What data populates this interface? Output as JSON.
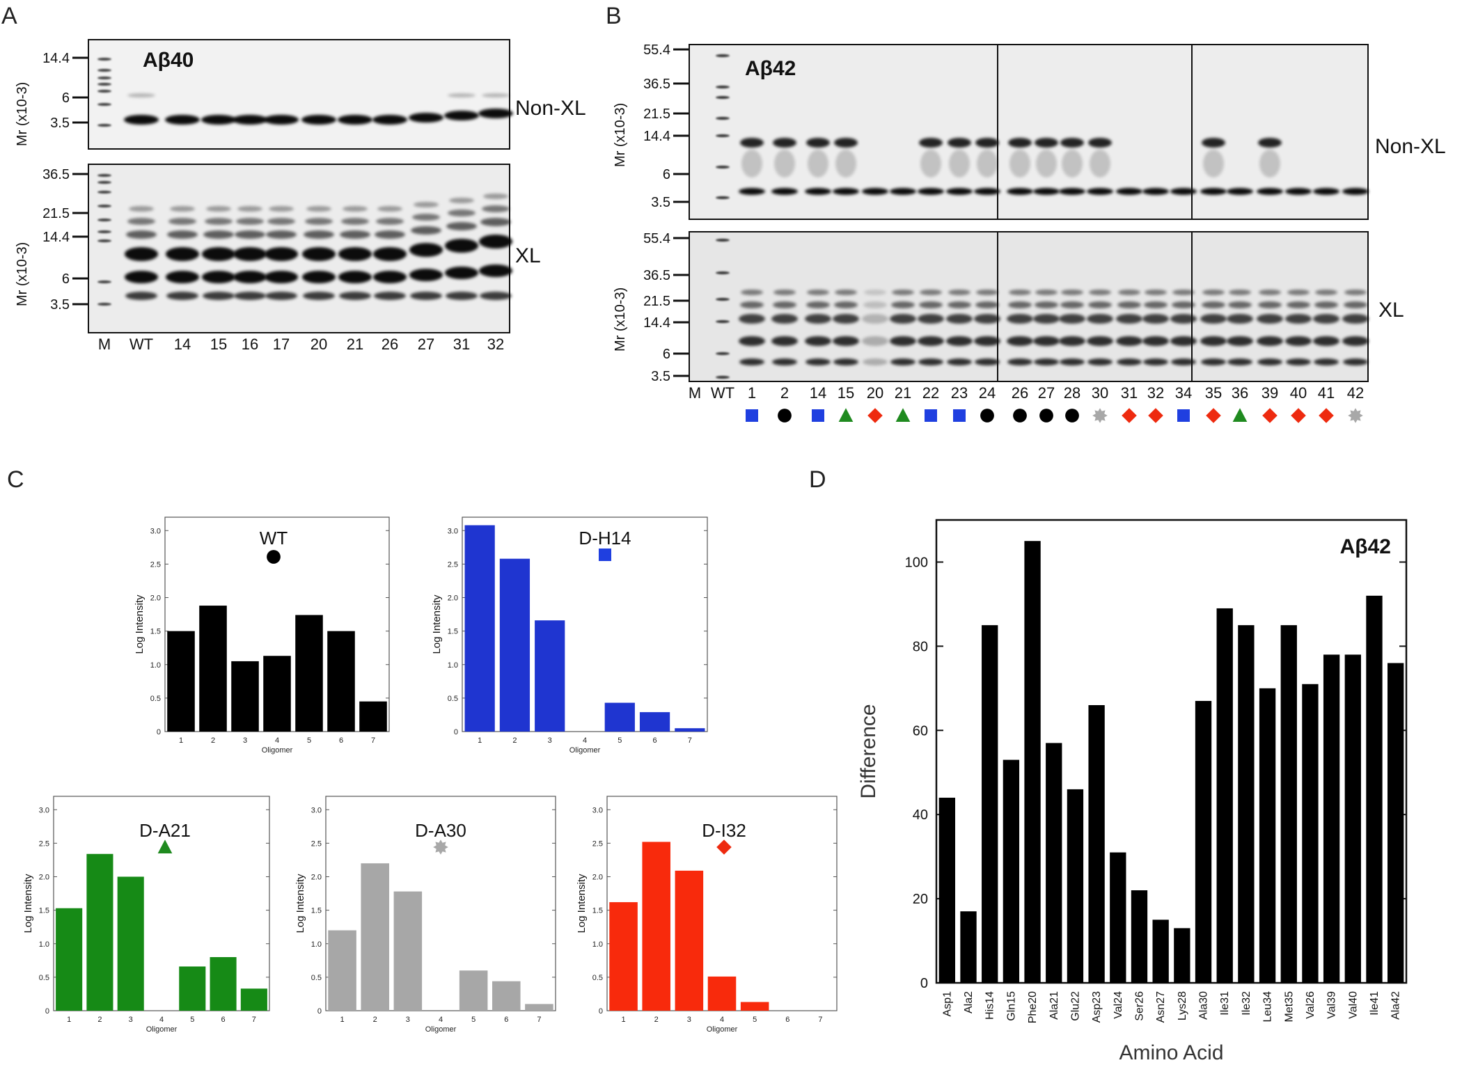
{
  "panel_letters": {
    "a": "A",
    "b": "B",
    "c": "C",
    "d": "D"
  },
  "panel_a": {
    "title": "Aβ40",
    "top_label": "Non-XL",
    "bottom_label": "XL",
    "mr_label": "Mr (x10-3)",
    "top_markers": [
      "14.4",
      "6",
      "3.5"
    ],
    "bottom_markers": [
      "36.5",
      "21.5",
      "14.4",
      "6",
      "3.5"
    ],
    "lanes": [
      "M",
      "WT",
      "14",
      "15",
      "16",
      "17",
      "20",
      "21",
      "26",
      "27",
      "31",
      "32"
    ]
  },
  "panel_b": {
    "title": "Aβ42",
    "top_label": "Non-XL",
    "bottom_label": "XL",
    "mr_label": "Mr (x10-3)",
    "markers": [
      "55.4",
      "36.5",
      "21.5",
      "14.4",
      "6",
      "3.5"
    ],
    "lanes": [
      "M",
      "WT",
      "1",
      "2",
      "14",
      "15",
      "20",
      "21",
      "22",
      "23",
      "24",
      "26",
      "27",
      "28",
      "30",
      "31",
      "32",
      "34",
      "35",
      "36",
      "39",
      "40",
      "41",
      "42"
    ],
    "lane_symbols": [
      "",
      "",
      "square",
      "circle",
      "square",
      "triangle",
      "diamond",
      "triangle",
      "square",
      "square",
      "circle",
      "circle",
      "circle",
      "circle",
      "star",
      "diamond",
      "diamond",
      "square",
      "diamond",
      "triangle",
      "diamond",
      "diamond",
      "diamond",
      "star"
    ]
  },
  "symbol_colors": {
    "square": "#1f3fe0",
    "circle": "#000000",
    "triangle": "#1f8a1f",
    "diamond": "#ee2a0f",
    "star": "#a8a8a8"
  },
  "chart_data": [
    {
      "type": "bar",
      "title": "WT",
      "marker": "circle",
      "color": "#000000",
      "categories": [
        "1",
        "2",
        "3",
        "4",
        "5",
        "6",
        "7"
      ],
      "values": [
        1.5,
        1.88,
        1.05,
        1.13,
        1.74,
        1.5,
        0.45
      ],
      "xlabel": "Oligomer",
      "ylabel": "Log Intensity",
      "ylim": [
        0,
        3.2
      ],
      "yticks": [
        "0",
        "0.5",
        "1.0",
        "1.5",
        "2.0",
        "2.5",
        "3.0"
      ]
    },
    {
      "type": "bar",
      "title": "D-H14",
      "marker": "square",
      "color": "#1f35d0",
      "categories": [
        "1",
        "2",
        "3",
        "4",
        "5",
        "6",
        "7"
      ],
      "values": [
        3.08,
        2.58,
        1.66,
        0,
        0.43,
        0.29,
        0.05
      ],
      "xlabel": "Oligomer",
      "ylabel": "Log Intensity",
      "ylim": [
        0,
        3.2
      ],
      "yticks": [
        "0",
        "0.5",
        "1.0",
        "1.5",
        "2.0",
        "2.5",
        "3.0"
      ]
    },
    {
      "type": "bar",
      "title": "D-A21",
      "marker": "triangle",
      "color": "#168a16",
      "categories": [
        "1",
        "2",
        "3",
        "4",
        "5",
        "6",
        "7"
      ],
      "values": [
        1.53,
        2.34,
        2.0,
        0,
        0.66,
        0.8,
        0.33
      ],
      "xlabel": "Oligomer",
      "ylabel": "Log Intensity",
      "ylim": [
        0,
        3.2
      ],
      "yticks": [
        "0",
        "0.5",
        "1.0",
        "1.5",
        "2.0",
        "2.5",
        "3.0"
      ]
    },
    {
      "type": "bar",
      "title": "D-A30",
      "marker": "star",
      "color": "#a7a7a7",
      "categories": [
        "1",
        "2",
        "3",
        "4",
        "5",
        "6",
        "7"
      ],
      "values": [
        1.2,
        2.2,
        1.78,
        0,
        0.6,
        0.44,
        0.1
      ],
      "xlabel": "Oligomer",
      "ylabel": "Log Intensity",
      "ylim": [
        0,
        3.2
      ],
      "yticks": [
        "0",
        "0.5",
        "1.0",
        "1.5",
        "2.0",
        "2.5",
        "3.0"
      ]
    },
    {
      "type": "bar",
      "title": "D-I32",
      "marker": "diamond",
      "color": "#f82a0c",
      "categories": [
        "1",
        "2",
        "3",
        "4",
        "5",
        "6",
        "7"
      ],
      "values": [
        1.62,
        2.52,
        2.09,
        0.51,
        0.13,
        0,
        0
      ],
      "xlabel": "Oligomer",
      "ylabel": "Log Intensity",
      "ylim": [
        0,
        3.2
      ],
      "yticks": [
        "0",
        "0.5",
        "1.0",
        "1.5",
        "2.0",
        "2.5",
        "3.0"
      ]
    },
    {
      "type": "bar",
      "title": "Aβ42",
      "color": "#000000",
      "categories": [
        "Asp1",
        "Ala2",
        "His14",
        "Gln15",
        "Phe20",
        "Ala21",
        "Glu22",
        "Asp23",
        "Val24",
        "Ser26",
        "Asn27",
        "Lys28",
        "Ala30",
        "Ile31",
        "Ile32",
        "Leu34",
        "Met35",
        "Val26",
        "Val39",
        "Val40",
        "Ile41",
        "Ala42"
      ],
      "values": [
        44,
        17,
        85,
        53,
        105,
        57,
        46,
        66,
        31,
        22,
        15,
        13,
        67,
        89,
        85,
        70,
        85,
        71,
        78,
        78,
        92,
        76
      ],
      "xlabel": "Amino Acid",
      "ylabel": "Difference",
      "ylim": [
        0,
        110
      ],
      "yticks": [
        "0",
        "20",
        "40",
        "60",
        "80",
        "100"
      ]
    }
  ]
}
